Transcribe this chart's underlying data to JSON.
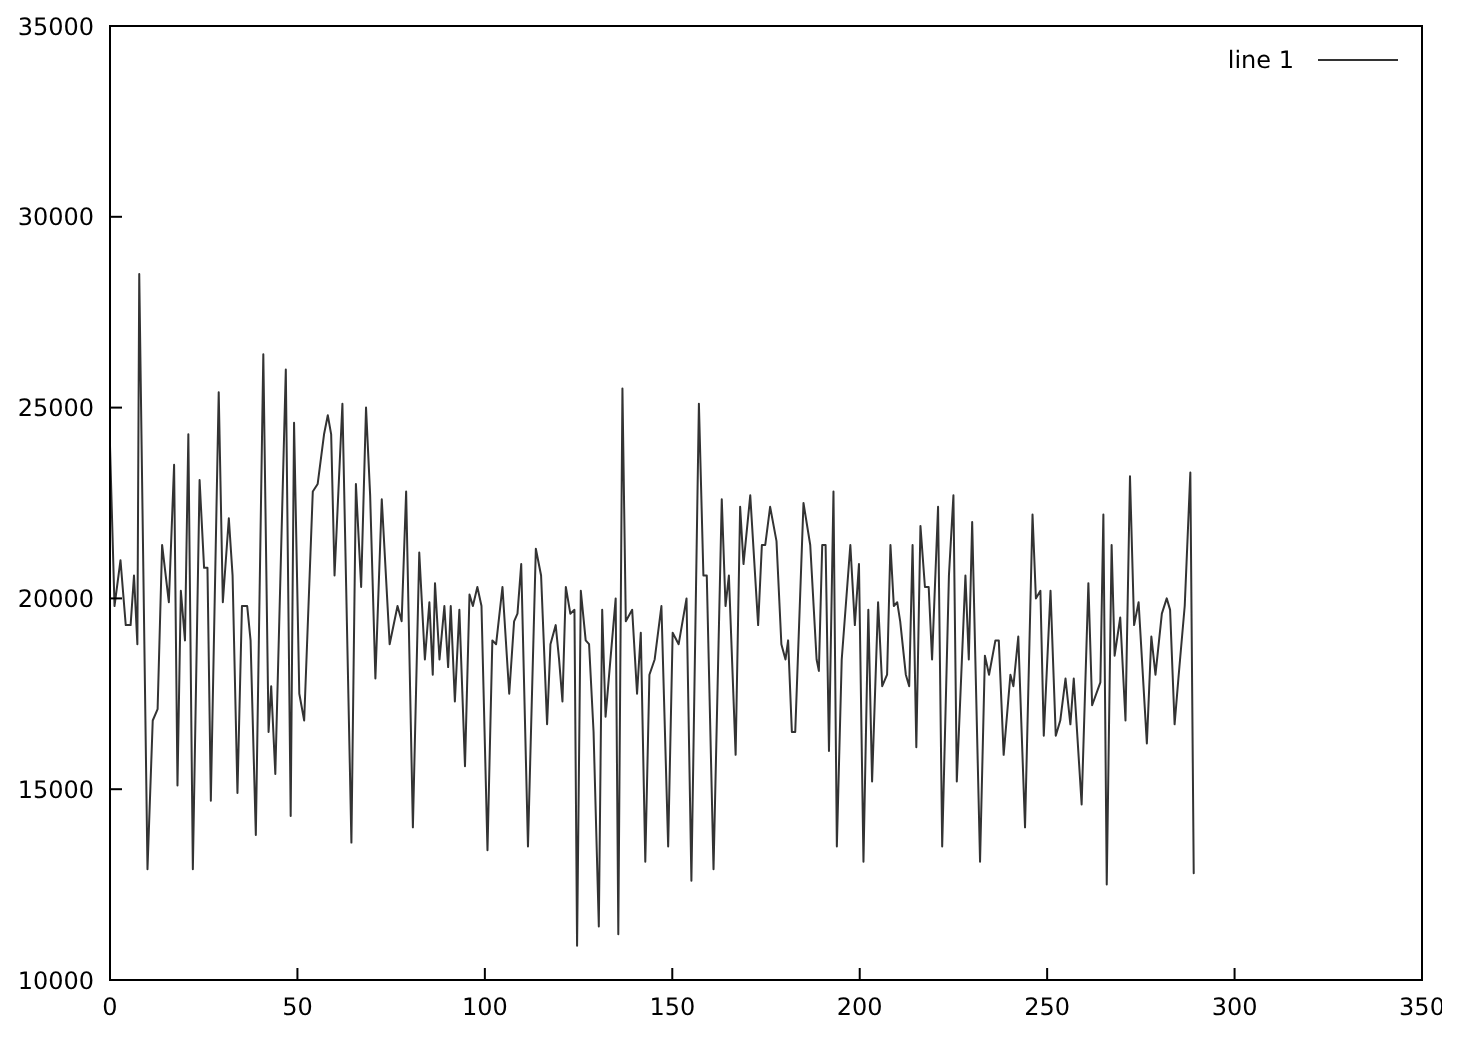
{
  "chart_data": {
    "type": "line",
    "xlim": [
      0,
      350
    ],
    "xticks": [
      0,
      50,
      100,
      150,
      200,
      250,
      300,
      350
    ],
    "ylim": [
      10000,
      35000
    ],
    "yticks": [
      10000,
      15000,
      20000,
      25000,
      30000,
      35000
    ],
    "grid": false,
    "legend": "top right",
    "series": [
      {
        "name": "line 1",
        "color": "#333333",
        "x": [
          0,
          1.2,
          2.8,
          4.2,
          5.5,
          6.4,
          7.3,
          7.8,
          10,
          11.4,
          12.7,
          13.9,
          15.7,
          17.1,
          18,
          18.9,
          20,
          20.9,
          22.1,
          23.9,
          25.1,
          26,
          26.9,
          29,
          30.1,
          31.7,
          32.7,
          34,
          35.2,
          36.6,
          37.5,
          38.9,
          40.9,
          42.3,
          43,
          44.1,
          46.9,
          48.2,
          49.1,
          50.5,
          51.8,
          54.1,
          55.4,
          57.1,
          58.1,
          59,
          59.9,
          62,
          64.4,
          65.6,
          67,
          68.3,
          69.4,
          70.8,
          72.5,
          74.6,
          76.7,
          77.8,
          79,
          80.8,
          82.5,
          84,
          85.2,
          86.1,
          86.7,
          87.9,
          89.2,
          90.2,
          90.9,
          92,
          93.2,
          94.7,
          95.9,
          96.8,
          98,
          99.1,
          100.7,
          102,
          103,
          104.7,
          106.5,
          107.8,
          108.7,
          109.7,
          111.5,
          113.6,
          115,
          116.6,
          117.5,
          118.9,
          119.8,
          120.7,
          121.6,
          122.8,
          123.9,
          124.6,
          125.6,
          126.9,
          127.8,
          129,
          130.4,
          131.3,
          132.2,
          133.5,
          134.9,
          135.6,
          136.7,
          137.6,
          139.3,
          140.6,
          141.6,
          142.8,
          143.9,
          145.3,
          147.1,
          148.9,
          150.1,
          151.7,
          153.8,
          155.1,
          157.1,
          158.3,
          159.2,
          161,
          163.2,
          164.2,
          165.1,
          166.9,
          168.1,
          169,
          170.8,
          172.9,
          173.9,
          174.8,
          176.1,
          177.8,
          179.1,
          180.2,
          180.9,
          181.9,
          182.8,
          185,
          186.8,
          188.5,
          189.1,
          190,
          190.9,
          191.8,
          193,
          193.9,
          195.2,
          197.5,
          198.7,
          199.8,
          201,
          202.3,
          203.3,
          204.9,
          206,
          207.3,
          208.2,
          209.1,
          210,
          210.8,
          212.3,
          213.2,
          214.1,
          215.1,
          216.2,
          217.4,
          218.4,
          219.3,
          220.9,
          222,
          223.8,
          225,
          225.9,
          228.2,
          229.1,
          230,
          232.1,
          233.4,
          234.5,
          236.2,
          237.1,
          238.4,
          240.2,
          241,
          242.3,
          244.1,
          246.1,
          247,
          248.2,
          249.1,
          250.9,
          252.3,
          253.5,
          254.9,
          256.2,
          257.1,
          259.2,
          261,
          262,
          264.2,
          265,
          265.9,
          267.2,
          268,
          269.5,
          270.9,
          272.1,
          273.2,
          274.4,
          276.6,
          277.8,
          278.9,
          280.6,
          281.9,
          282.8,
          284,
          285.1,
          286.7,
          288.2,
          289.1
        ],
        "values": [
          24000,
          19800,
          21000,
          19300,
          19300,
          20600,
          18800,
          28500,
          12900,
          16800,
          17100,
          21400,
          19900,
          23500,
          15100,
          20200,
          18900,
          24300,
          12900,
          23100,
          20800,
          20800,
          14700,
          25400,
          19900,
          22100,
          20600,
          14900,
          19800,
          19800,
          18900,
          13800,
          26400,
          16500,
          17700,
          15400,
          26000,
          14300,
          24600,
          17500,
          16800,
          22800,
          23000,
          24300,
          24800,
          24300,
          20600,
          25100,
          13600,
          23000,
          20300,
          25000,
          22700,
          17900,
          22600,
          18800,
          19800,
          19400,
          22800,
          14000,
          21200,
          18400,
          19900,
          18000,
          20400,
          18400,
          19800,
          18200,
          19800,
          17300,
          19700,
          15600,
          20100,
          19800,
          20300,
          19800,
          13400,
          18900,
          18800,
          20300,
          17500,
          19400,
          19600,
          20900,
          13500,
          21300,
          20600,
          16700,
          18800,
          19300,
          18400,
          17300,
          20300,
          19600,
          19700,
          10900,
          20200,
          18900,
          18800,
          16500,
          11400,
          19700,
          16900,
          18400,
          20000,
          11200,
          25500,
          19400,
          19700,
          17500,
          19100,
          13100,
          18000,
          18400,
          19800,
          13500,
          19100,
          18800,
          20000,
          12600,
          25100,
          20600,
          20600,
          12900,
          22600,
          19800,
          20600,
          15900,
          22400,
          20900,
          22700,
          19300,
          21400,
          21400,
          22400,
          21500,
          18800,
          18400,
          18900,
          16500,
          16500,
          22500,
          21400,
          18400,
          18100,
          21400,
          21400,
          16000,
          22800,
          13500,
          18400,
          21400,
          19300,
          20900,
          13100,
          19700,
          15200,
          19900,
          17700,
          18000,
          21400,
          19800,
          19900,
          19400,
          18000,
          17700,
          21400,
          16100,
          21900,
          20300,
          20300,
          18400,
          22400,
          13500,
          20600,
          22700,
          15200,
          20600,
          18400,
          22000,
          13100,
          18500,
          18000,
          18900,
          18900,
          15900,
          18000,
          17700,
          19000,
          14000,
          22200,
          20000,
          20200,
          16400,
          20200,
          16400,
          16800,
          17900,
          16700,
          17900,
          14600,
          20400,
          17200,
          17800,
          22200,
          12500,
          21400,
          18500,
          19500,
          16800,
          23200,
          19300,
          19900,
          16200,
          19000,
          18000,
          19600,
          20000,
          19700,
          16700,
          18000,
          19800,
          23300,
          12800
        ]
      }
    ]
  }
}
